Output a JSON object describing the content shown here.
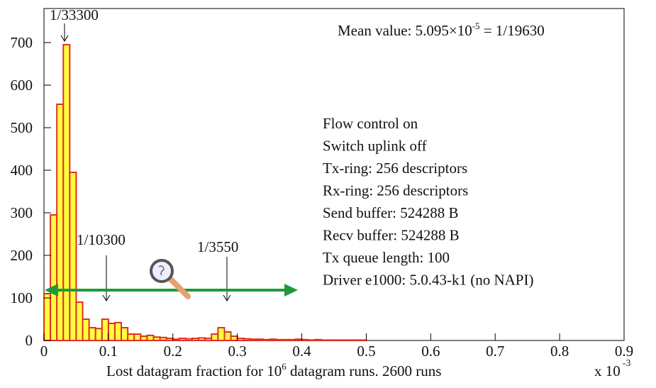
{
  "chart_data": {
    "type": "histogram",
    "bins": [
      0,
      0.01,
      0.02,
      0.03,
      0.04,
      0.05,
      0.06,
      0.07,
      0.08,
      0.09,
      0.1,
      0.11,
      0.12,
      0.13,
      0.14,
      0.15,
      0.16,
      0.17,
      0.18,
      0.19,
      0.2,
      0.21,
      0.22,
      0.23,
      0.24,
      0.25,
      0.26,
      0.27,
      0.28,
      0.29,
      0.3,
      0.31,
      0.32,
      0.33,
      0.34,
      0.35,
      0.36,
      0.37,
      0.38,
      0.39,
      0.4,
      0.41,
      0.42,
      0.43,
      0.44,
      0.45,
      0.46,
      0.47,
      0.48,
      0.49,
      0.5
    ],
    "values": [
      110,
      295,
      555,
      695,
      395,
      90,
      50,
      30,
      28,
      50,
      40,
      42,
      30,
      15,
      15,
      10,
      12,
      8,
      7,
      5,
      3,
      5,
      4,
      5,
      6,
      5,
      15,
      30,
      20,
      10,
      5,
      4,
      3,
      3,
      2,
      3,
      2,
      2,
      2,
      3,
      2,
      1,
      2,
      1,
      1,
      1,
      1,
      1,
      1,
      1
    ],
    "color": "#ffff40",
    "edge_color": "#e03020",
    "xlim": [
      0,
      0.9
    ],
    "xticks": [
      0,
      0.1,
      0.2,
      0.3,
      0.4,
      0.5,
      0.6,
      0.7,
      0.8,
      0.9
    ],
    "ylim": [
      0,
      780
    ],
    "yticks": [
      0,
      100,
      200,
      300,
      400,
      500,
      600,
      700
    ],
    "x_label": {
      "text": "Lost datagram fraction for 10",
      "sup": "6",
      "rest": " datagram runs. 2600 runs"
    },
    "x_scale": {
      "text": "x 10",
      "sup": "-3"
    },
    "mean": {
      "text": "Mean value: 5.095×10",
      "sup": "-5",
      "rest": " = 1/19630"
    },
    "annotations": [
      "1/33300",
      "1/10300",
      "1/3550"
    ],
    "info": [
      "Flow control on",
      "Switch uplink off",
      "Tx-ring: 256 descriptors",
      "Rx-ring: 256 descriptors",
      "Send buffer: 524288 B",
      "Recv buffer: 524288 B",
      "Tx queue length: 100",
      "Driver e1000: 5.0.43-k1 (no NAPI)"
    ]
  }
}
